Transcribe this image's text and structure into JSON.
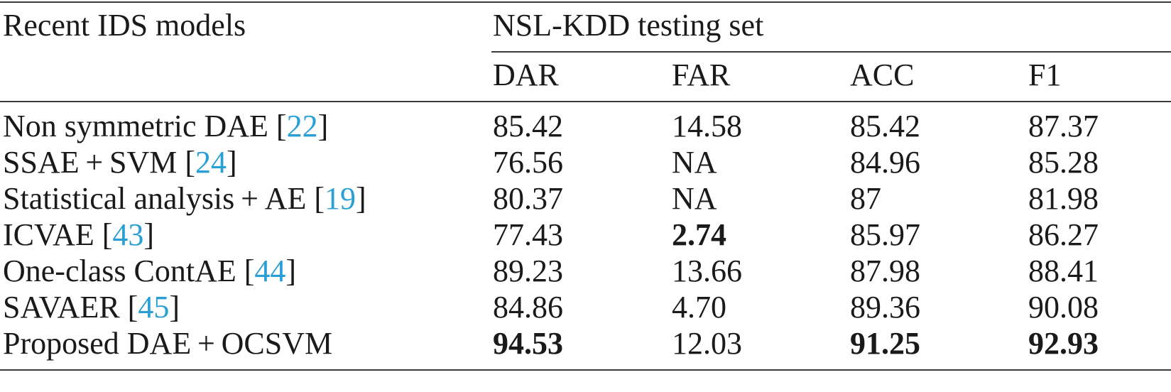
{
  "header": {
    "models_label": "Recent IDS models",
    "group_label": "NSL-KDD testing set",
    "columns": [
      "DAR",
      "FAR",
      "ACC",
      "F1"
    ]
  },
  "rows": [
    {
      "name": "Non symmetric DAE [",
      "ref": "22",
      "close": "]",
      "values": [
        "85.42",
        "14.58",
        "85.42",
        "87.37"
      ],
      "bold": [
        false,
        false,
        false,
        false
      ]
    },
    {
      "name": "SSAE + SVM [",
      "ref": "24",
      "close": "]",
      "values": [
        "76.56",
        "NA",
        "84.96",
        "85.28"
      ],
      "bold": [
        false,
        false,
        false,
        false
      ]
    },
    {
      "name": "Statistical analysis + AE [",
      "ref": "19",
      "close": "]",
      "values": [
        "80.37",
        "NA",
        "87",
        "81.98"
      ],
      "bold": [
        false,
        false,
        false,
        false
      ]
    },
    {
      "name": "ICVAE [",
      "ref": "43",
      "close": "]",
      "values": [
        "77.43",
        "2.74",
        "85.97",
        "86.27"
      ],
      "bold": [
        false,
        true,
        false,
        false
      ]
    },
    {
      "name": "One-class ContAE [",
      "ref": "44",
      "close": "]",
      "values": [
        "89.23",
        "13.66",
        "87.98",
        "88.41"
      ],
      "bold": [
        false,
        false,
        false,
        false
      ]
    },
    {
      "name": "SAVAER [",
      "ref": "45",
      "close": "]",
      "values": [
        "84.86",
        "4.70",
        "89.36",
        "90.08"
      ],
      "bold": [
        false,
        false,
        false,
        false
      ]
    },
    {
      "name": "Proposed DAE + OCSVM",
      "ref": "",
      "close": "",
      "values": [
        "94.53",
        "12.03",
        "91.25",
        "92.93"
      ],
      "bold": [
        true,
        false,
        true,
        true
      ]
    }
  ]
}
